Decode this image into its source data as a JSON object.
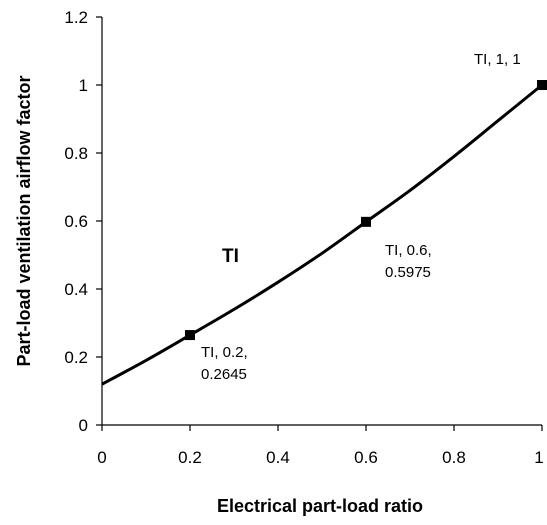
{
  "chart_data": {
    "type": "line",
    "xlabel": "Electrical part-load ratio",
    "ylabel": "Part-load ventilation airflow factor",
    "xlim": [
      0,
      1
    ],
    "ylim": [
      0,
      1.2
    ],
    "x_ticks": [
      "0",
      "0.2",
      "0.4",
      "0.6",
      "0.8",
      "1"
    ],
    "y_ticks": [
      "0",
      "0.2",
      "0.4",
      "0.6",
      "0.8",
      "1",
      "1.2"
    ],
    "grid": false,
    "legend": "none",
    "series": [
      {
        "name": "TI",
        "color": "#000000",
        "x": [
          0,
          0.1,
          0.2,
          0.3,
          0.4,
          0.5,
          0.6,
          0.7,
          0.8,
          0.9,
          1
        ],
        "y": [
          0.12,
          0.19,
          0.2645,
          0.34,
          0.42,
          0.505,
          0.5975,
          0.69,
          0.79,
          0.895,
          1
        ]
      }
    ],
    "markers": [
      {
        "x": 0.2,
        "y": 0.2645,
        "label_line1": "TI, 0.2,",
        "label_line2": "0.2645"
      },
      {
        "x": 0.6,
        "y": 0.5975,
        "label_line1": "TI, 0.6,",
        "label_line2": "0.5975"
      },
      {
        "x": 1,
        "y": 1,
        "label_line1": "TI, 1, 1",
        "label_line2": ""
      }
    ],
    "series_label": "TI"
  }
}
